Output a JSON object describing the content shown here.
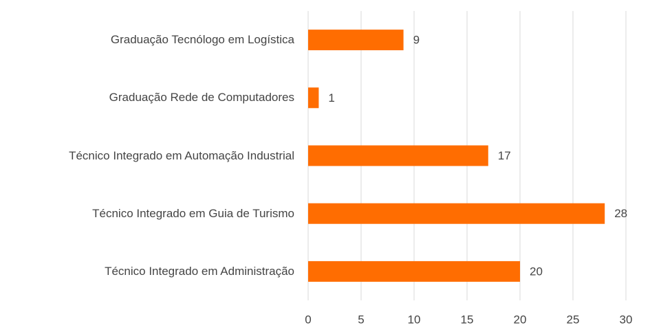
{
  "chart_data": {
    "type": "bar",
    "orientation": "horizontal",
    "categories": [
      "Graduação Tecnólogo em Logística",
      "Graduação Rede de Computadores",
      "Técnico Integrado em Automação Industrial",
      "Técnico Integrado em Guia de Turismo",
      "Técnico Integrado em Administração"
    ],
    "values": [
      9,
      1,
      17,
      28,
      20
    ],
    "color": "#ff6d01",
    "xlim": [
      0,
      30
    ],
    "xticks": [
      0,
      5,
      10,
      15,
      20,
      25,
      30
    ],
    "grid": true
  }
}
